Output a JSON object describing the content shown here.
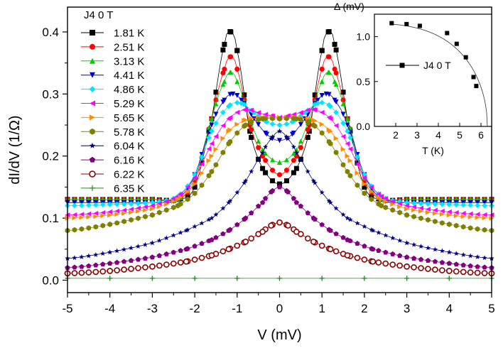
{
  "chart_data": [
    {
      "type": "scatter",
      "title": "",
      "xlabel": "V (mV)",
      "ylabel": "dI/dV (1/Ω)",
      "xlim": [
        -5,
        5
      ],
      "ylim": [
        -0.02,
        0.44
      ],
      "xticks": [
        "-5",
        "-4",
        "-3",
        "-2",
        "-1",
        "0",
        "1",
        "2",
        "3",
        "4",
        "5"
      ],
      "yticks": [
        "0.0",
        "0.1",
        "0.2",
        "0.3",
        "0.4"
      ],
      "legend_title": "J4   0 T",
      "legend_position": "top-left",
      "series": [
        {
          "name": "1.81 K",
          "color": "#000000",
          "marker": "square",
          "x": [
            -5,
            -4,
            -3,
            -2.4,
            -2.0,
            -1.6,
            -1.3,
            -1.15,
            -1.0,
            -0.7,
            -0.4,
            0,
            0.4,
            0.7,
            1.0,
            1.15,
            1.3,
            1.6,
            2.0,
            2.4,
            3,
            4,
            5
          ],
          "y": [
            0.13,
            0.13,
            0.13,
            0.13,
            0.15,
            0.26,
            0.38,
            0.4,
            0.37,
            0.24,
            0.18,
            0.155,
            0.18,
            0.24,
            0.37,
            0.4,
            0.38,
            0.26,
            0.15,
            0.13,
            0.13,
            0.13,
            0.13
          ]
        },
        {
          "name": "2.51 K",
          "color": "#ff0000",
          "marker": "circle",
          "x": [
            -5,
            -4,
            -3,
            -2.4,
            -2.0,
            -1.6,
            -1.3,
            -1.15,
            -1.0,
            -0.7,
            -0.4,
            0,
            0.4,
            0.7,
            1.0,
            1.15,
            1.3,
            1.6,
            2.0,
            2.4,
            3,
            4,
            5
          ],
          "y": [
            0.13,
            0.13,
            0.13,
            0.13,
            0.16,
            0.26,
            0.34,
            0.36,
            0.34,
            0.25,
            0.2,
            0.17,
            0.2,
            0.25,
            0.34,
            0.36,
            0.34,
            0.26,
            0.16,
            0.13,
            0.13,
            0.13,
            0.13
          ]
        },
        {
          "name": "3.13 K",
          "color": "#00cc00",
          "marker": "triangle-up",
          "x": [
            -5,
            -4,
            -3,
            -2.4,
            -2.0,
            -1.6,
            -1.3,
            -1.15,
            -1.0,
            -0.7,
            -0.4,
            0,
            0.4,
            0.7,
            1.0,
            1.15,
            1.3,
            1.6,
            2.0,
            2.4,
            3,
            4,
            5
          ],
          "y": [
            0.13,
            0.13,
            0.13,
            0.13,
            0.165,
            0.26,
            0.32,
            0.335,
            0.32,
            0.26,
            0.21,
            0.19,
            0.21,
            0.26,
            0.32,
            0.335,
            0.32,
            0.26,
            0.165,
            0.13,
            0.13,
            0.13,
            0.13
          ]
        },
        {
          "name": "4.41 K",
          "color": "#0000cc",
          "marker": "triangle-down",
          "x": [
            -5,
            -4,
            -3,
            -2.4,
            -2.0,
            -1.6,
            -1.3,
            -1.1,
            -0.9,
            -0.6,
            -0.3,
            0,
            0.3,
            0.6,
            0.9,
            1.1,
            1.3,
            1.6,
            2.0,
            2.4,
            3,
            4,
            5
          ],
          "y": [
            0.125,
            0.125,
            0.125,
            0.13,
            0.17,
            0.25,
            0.29,
            0.3,
            0.29,
            0.26,
            0.235,
            0.225,
            0.235,
            0.26,
            0.29,
            0.3,
            0.29,
            0.25,
            0.17,
            0.13,
            0.125,
            0.125,
            0.125
          ]
        },
        {
          "name": "4.86 K",
          "color": "#00e5ff",
          "marker": "diamond",
          "x": [
            -5,
            -4,
            -3,
            -2.4,
            -2.0,
            -1.6,
            -1.2,
            -0.9,
            -0.6,
            -0.3,
            0,
            0.3,
            0.6,
            0.9,
            1.2,
            1.6,
            2.0,
            2.4,
            3,
            4,
            5
          ],
          "y": [
            0.12,
            0.122,
            0.125,
            0.135,
            0.17,
            0.24,
            0.28,
            0.285,
            0.27,
            0.255,
            0.25,
            0.255,
            0.27,
            0.285,
            0.28,
            0.24,
            0.17,
            0.135,
            0.125,
            0.122,
            0.12
          ]
        },
        {
          "name": "5.29 K",
          "color": "#ff00ff",
          "marker": "triangle-left",
          "x": [
            -5,
            -4,
            -3,
            -2.4,
            -2.0,
            -1.6,
            -1.2,
            -0.8,
            -0.5,
            -0.2,
            0,
            0.2,
            0.5,
            0.8,
            1.2,
            1.6,
            2.0,
            2.4,
            3,
            4,
            5
          ],
          "y": [
            0.105,
            0.11,
            0.12,
            0.135,
            0.165,
            0.22,
            0.26,
            0.275,
            0.27,
            0.265,
            0.262,
            0.265,
            0.27,
            0.275,
            0.26,
            0.22,
            0.165,
            0.135,
            0.12,
            0.11,
            0.105
          ]
        },
        {
          "name": "5.65 K",
          "color": "#ff8c00",
          "marker": "triangle-right",
          "x": [
            -5,
            -4,
            -3,
            -2.4,
            -2.0,
            -1.6,
            -1.2,
            -0.8,
            -0.4,
            0,
            0.4,
            0.8,
            1.2,
            1.6,
            2.0,
            2.4,
            3,
            4,
            5
          ],
          "y": [
            0.1,
            0.105,
            0.115,
            0.13,
            0.155,
            0.2,
            0.24,
            0.258,
            0.262,
            0.262,
            0.262,
            0.258,
            0.24,
            0.2,
            0.155,
            0.13,
            0.115,
            0.105,
            0.1
          ]
        },
        {
          "name": "5.78 K",
          "color": "#808000",
          "marker": "hexagon",
          "x": [
            -5,
            -4,
            -3,
            -2.4,
            -2.0,
            -1.6,
            -1.2,
            -0.8,
            -0.4,
            0,
            0.4,
            0.8,
            1.2,
            1.6,
            2.0,
            2.4,
            3,
            4,
            5
          ],
          "y": [
            0.08,
            0.09,
            0.105,
            0.12,
            0.14,
            0.175,
            0.22,
            0.25,
            0.26,
            0.26,
            0.26,
            0.25,
            0.22,
            0.175,
            0.14,
            0.12,
            0.105,
            0.09,
            0.08
          ]
        },
        {
          "name": "6.04 K",
          "color": "#000080",
          "marker": "star",
          "x": [
            -5,
            -4,
            -3,
            -2.2,
            -1.6,
            -1.2,
            -0.8,
            -0.4,
            -0.2,
            0,
            0.2,
            0.4,
            0.8,
            1.2,
            1.6,
            2.2,
            3,
            4,
            5
          ],
          "y": [
            0.035,
            0.045,
            0.06,
            0.08,
            0.1,
            0.125,
            0.16,
            0.205,
            0.228,
            0.24,
            0.228,
            0.205,
            0.16,
            0.125,
            0.1,
            0.08,
            0.06,
            0.045,
            0.035
          ]
        },
        {
          "name": "6.16 K",
          "color": "#800080",
          "marker": "pentagon",
          "x": [
            -5,
            -4,
            -3,
            -2.2,
            -1.6,
            -1.2,
            -0.8,
            -0.4,
            -0.2,
            0,
            0.2,
            0.4,
            0.8,
            1.2,
            1.6,
            2.2,
            3,
            4,
            5
          ],
          "y": [
            0.02,
            0.027,
            0.037,
            0.05,
            0.065,
            0.08,
            0.1,
            0.125,
            0.142,
            0.15,
            0.142,
            0.125,
            0.1,
            0.08,
            0.065,
            0.05,
            0.037,
            0.027,
            0.02
          ]
        },
        {
          "name": "6.22 K",
          "color": "#8b0000",
          "marker": "circle-open",
          "x": [
            -5,
            -4,
            -3,
            -2.2,
            -1.6,
            -1.2,
            -0.8,
            -0.4,
            -0.2,
            0,
            0.2,
            0.4,
            0.8,
            1.2,
            1.6,
            2.2,
            3,
            4,
            5
          ],
          "y": [
            0.011,
            0.015,
            0.022,
            0.03,
            0.04,
            0.05,
            0.062,
            0.078,
            0.088,
            0.093,
            0.088,
            0.078,
            0.062,
            0.05,
            0.04,
            0.03,
            0.022,
            0.015,
            0.011
          ]
        },
        {
          "name": "6.35 K",
          "color": "#228b22",
          "marker": "plus",
          "x": [
            -5,
            -4,
            -3,
            -2,
            -1,
            0,
            1,
            2,
            3,
            4,
            5
          ],
          "y": [
            0.003,
            0.003,
            0.003,
            0.003,
            0.003,
            0.003,
            0.003,
            0.003,
            0.003,
            0.003,
            0.003
          ]
        }
      ]
    },
    {
      "type": "line",
      "title": "Δ  (mV)",
      "xlabel": "T (K)",
      "ylabel": "Δ  (mV)",
      "xlim": [
        1,
        6.5
      ],
      "ylim": [
        0,
        1.25
      ],
      "xticks": [
        "2",
        "3",
        "4",
        "5",
        "6"
      ],
      "yticks": [
        "0.0",
        "0.5",
        "1.0"
      ],
      "legend_label": "J4   0 T",
      "legend_position": "center",
      "series": [
        {
          "name": "J4   0 T",
          "color": "#000000",
          "marker": "square",
          "x": [
            1.81,
            2.51,
            3.13,
            4.41,
            4.86,
            5.29,
            5.65,
            5.78
          ],
          "y": [
            1.15,
            1.14,
            1.12,
            1.04,
            0.92,
            0.77,
            0.55,
            0.45
          ]
        }
      ]
    }
  ]
}
